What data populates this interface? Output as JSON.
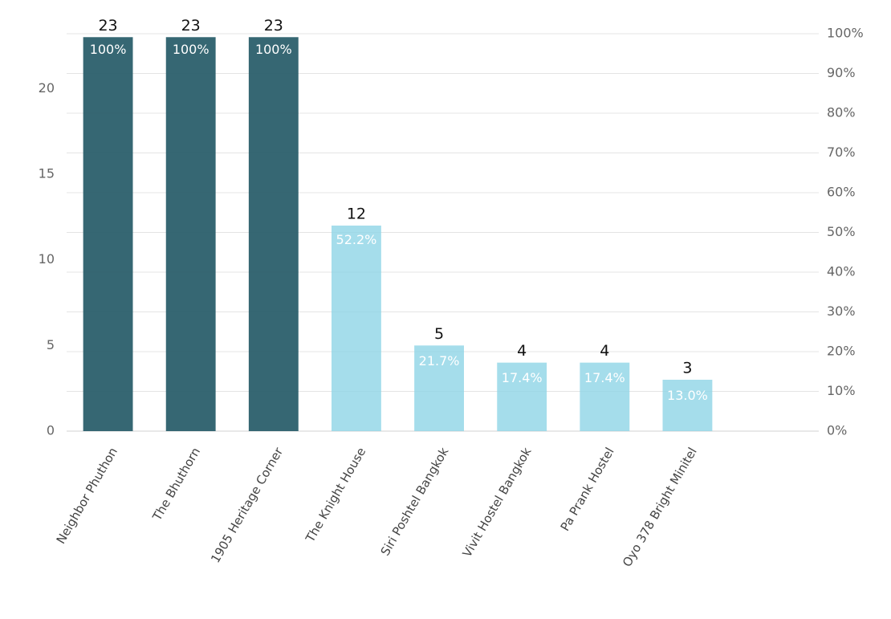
{
  "chart_data": {
    "type": "bar",
    "categories": [
      "Neighbor Phuthon",
      "The Bhuthorn",
      "1905 Heritage Corner",
      "The Knight House",
      "Siri Poshtel Bangkok",
      "Vivit Hostel Bangkok",
      "Pa Prank Hostel",
      "Oyo 378 Bright Minitel"
    ],
    "series": [
      {
        "values": [
          23,
          23,
          23,
          12,
          5,
          4,
          4,
          3
        ],
        "colors": [
          "#2b5f6b",
          "#2b5f6b",
          "#2b5f6b",
          "#8fd4e6",
          "#8fd4e6",
          "#8fd4e6",
          "#8fd4e6",
          "#8fd4e6"
        ]
      },
      {
        "axis": "y2",
        "values": [
          100,
          100,
          100,
          52.2,
          21.7,
          17.4,
          17.4,
          13.0
        ],
        "value_labels": [
          "100%",
          "100%",
          "100%",
          "52.2%",
          "21.7%",
          "17.4%",
          "17.4%",
          "13.0%"
        ]
      }
    ],
    "ylim": [
      0,
      23.2
    ],
    "yticks": [
      0,
      5,
      10,
      15,
      20
    ],
    "y2lim": [
      0,
      100
    ],
    "y2ticks": [
      {
        "value": 0,
        "label": "0%"
      },
      {
        "value": 10,
        "label": "10%"
      },
      {
        "value": 20,
        "label": "20%"
      },
      {
        "value": 30,
        "label": "30%"
      },
      {
        "value": 40,
        "label": "40%"
      },
      {
        "value": 50,
        "label": "50%"
      },
      {
        "value": 60,
        "label": "60%"
      },
      {
        "value": 70,
        "label": "70%"
      },
      {
        "value": 80,
        "label": "80%"
      },
      {
        "value": 90,
        "label": "90%"
      },
      {
        "value": 100,
        "label": "100%"
      }
    ],
    "grid": true
  }
}
